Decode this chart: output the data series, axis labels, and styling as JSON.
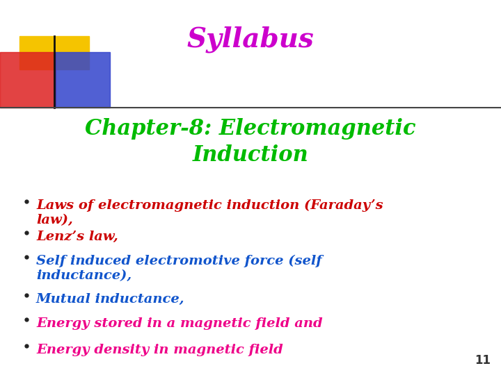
{
  "title": "Syllabus",
  "title_color": "#cc00cc",
  "chapter_line1": "Chapter-8: Electromagnetic",
  "chapter_line2": "Induction",
  "chapter_color": "#00bb00",
  "bullet_items": [
    {
      "text": "Laws of electromagnetic induction (Faraday’s\nlaw),",
      "color": "#cc0000"
    },
    {
      "text": "Lenz’s law,",
      "color": "#cc0000"
    },
    {
      "text": "Self induced electromotive force (self\ninductance),",
      "color": "#1155cc"
    },
    {
      "text": "Mutual inductance,",
      "color": "#1155cc"
    },
    {
      "text": "Energy stored in a magnetic field and",
      "color": "#ee0088"
    }
  ],
  "partial_item": "Energy density in magnetic field",
  "partial_color": "#ee0088",
  "page_number": "11",
  "bg_color": "#ffffff",
  "line_color": "#444444",
  "title_fontsize": 28,
  "chapter_fontsize": 22,
  "bullet_fontsize": 14
}
